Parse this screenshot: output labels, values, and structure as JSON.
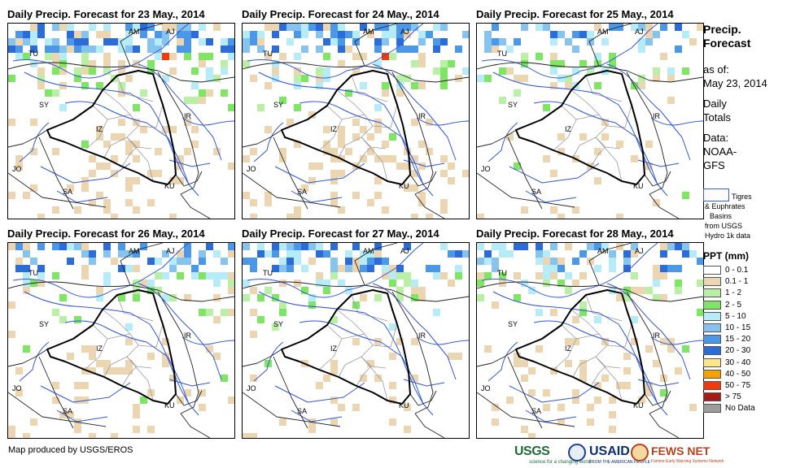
{
  "panels": [
    {
      "title": "Daily Precip. Forecast for 23 May., 2014",
      "seed": 23,
      "wet": 1.0,
      "south_tan": 0.55
    },
    {
      "title": "Daily Precip. Forecast for 24 May., 2014",
      "seed": 24,
      "wet": 0.9,
      "south_tan": 0.6
    },
    {
      "title": "Daily Precip. Forecast for 25 May., 2014",
      "seed": 25,
      "wet": 0.55,
      "south_tan": 0.25
    },
    {
      "title": "Daily Precip. Forecast for 26 May., 2014",
      "seed": 26,
      "wet": 0.75,
      "south_tan": 0.35
    },
    {
      "title": "Daily Precip. Forecast for 27 May., 2014",
      "seed": 27,
      "wet": 0.8,
      "south_tan": 0.3
    },
    {
      "title": "Daily Precip. Forecast for 28 May., 2014",
      "seed": 28,
      "wet": 0.6,
      "south_tan": 0.35
    }
  ],
  "map_labels": [
    "AM",
    "AJ",
    "TU",
    "SY",
    "IZ",
    "IR",
    "JO",
    "SA",
    "KU"
  ],
  "sidebar": {
    "heading": "Precip. Forecast",
    "as_of_label": "as of:",
    "as_of_date": "May 23, 2014",
    "daily_totals": "Daily Totals",
    "data_label": "Data:",
    "data_source": "NOAA-GFS"
  },
  "basin_legend": {
    "line1": "Tigres",
    "line2": "& Euphrates",
    "line3": "Basins",
    "line4": "from USGS",
    "line5": "Hydro 1k data"
  },
  "legend": {
    "title": "PPT (mm)",
    "classes": [
      {
        "label": "0 - 0.1",
        "color": "#ffffff"
      },
      {
        "label": "0.1 - 1",
        "color": "#ecd5b1"
      },
      {
        "label": "1 - 2",
        "color": "#b9f0a5"
      },
      {
        "label": "2 - 5",
        "color": "#7ee565"
      },
      {
        "label": "5 - 10",
        "color": "#b5ecf8"
      },
      {
        "label": "10 - 15",
        "color": "#86c3ee"
      },
      {
        "label": "15 - 20",
        "color": "#4b98e8"
      },
      {
        "label": "20 - 30",
        "color": "#2c6cd9"
      },
      {
        "label": "30 - 40",
        "color": "#fce68c"
      },
      {
        "label": "40 - 50",
        "color": "#f5a100"
      },
      {
        "label": "50 - 75",
        "color": "#f03a0c"
      },
      {
        "label": "> 75",
        "color": "#a51c14"
      },
      {
        "label": "No Data",
        "color": "#9c9c9c"
      }
    ]
  },
  "footer": {
    "credit": "Map produced by USGS/EROS",
    "logo_usgs": "USGS",
    "logo_usgs_tagline": "science for a changing world",
    "logo_usaid": "USAID",
    "logo_usaid_tagline": "FROM THE AMERICAN PEOPLE",
    "logo_fews": "FEWS NET",
    "logo_fews_tagline": "Famine Early Warning Systems Network"
  }
}
